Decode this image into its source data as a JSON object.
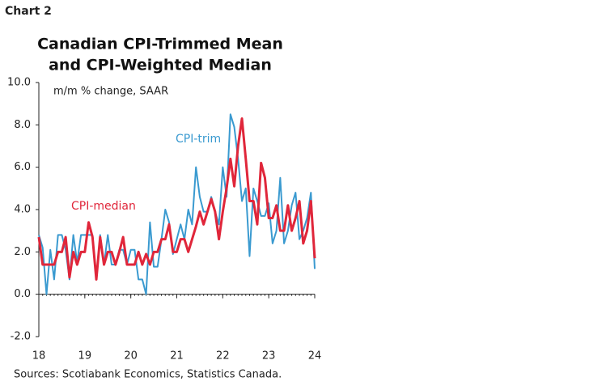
{
  "header": "Chart 2",
  "chart_data": {
    "type": "line",
    "title": [
      "Canadian CPI-Trimmed Mean",
      "and CPI-Weighted Median"
    ],
    "subtitle": "m/m % change, SAAR",
    "source": "Sources: Scotiabank Economics, Statistics Canada.",
    "x": [
      18,
      18.083,
      18.167,
      18.25,
      18.333,
      18.417,
      18.5,
      18.583,
      18.667,
      18.75,
      18.833,
      18.917,
      19,
      19.083,
      19.167,
      19.25,
      19.333,
      19.417,
      19.5,
      19.583,
      19.667,
      19.75,
      19.833,
      19.917,
      20,
      20.083,
      20.167,
      20.25,
      20.333,
      20.417,
      20.5,
      20.583,
      20.667,
      20.75,
      20.833,
      20.917,
      21,
      21.083,
      21.167,
      21.25,
      21.333,
      21.417,
      21.5,
      21.583,
      21.667,
      21.75,
      21.833,
      21.917,
      22,
      22.083,
      22.167,
      22.25,
      22.333,
      22.417,
      22.5,
      22.583,
      22.667,
      22.75,
      22.833,
      22.917,
      23,
      23.083,
      23.167,
      23.25,
      23.333,
      23.417,
      23.5,
      23.583,
      23.667,
      23.75,
      23.833,
      23.917,
      24
    ],
    "series": [
      {
        "name": "CPI-trim",
        "color": "#3a9ad0",
        "values": [
          2.8,
          2.2,
          0.0,
          2.1,
          0.7,
          2.8,
          2.8,
          2.1,
          0.7,
          2.8,
          1.5,
          2.8,
          2.8,
          2.8,
          2.8,
          0.7,
          2.8,
          1.4,
          2.8,
          1.4,
          1.4,
          2.1,
          2.1,
          1.4,
          2.1,
          2.1,
          0.7,
          0.7,
          0.0,
          3.4,
          1.3,
          1.3,
          2.6,
          4.0,
          3.4,
          1.9,
          2.6,
          3.3,
          2.6,
          4.0,
          3.3,
          6.0,
          4.6,
          3.9,
          3.9,
          4.6,
          3.9,
          3.3,
          6.0,
          4.6,
          8.5,
          7.9,
          6.4,
          4.4,
          5.0,
          1.8,
          5.0,
          4.4,
          3.7,
          3.7,
          4.3,
          2.4,
          3.0,
          5.5,
          2.4,
          3.0,
          4.2,
          4.8,
          2.6,
          3.0,
          3.6,
          4.8,
          1.2
        ]
      },
      {
        "name": "CPI-median",
        "color": "#e0263a",
        "values": [
          2.7,
          1.4,
          1.4,
          1.4,
          1.4,
          2.0,
          2.0,
          2.7,
          0.8,
          2.0,
          1.4,
          2.0,
          2.0,
          3.4,
          2.7,
          0.7,
          2.7,
          1.4,
          2.0,
          2.0,
          1.4,
          2.0,
          2.7,
          1.4,
          1.4,
          1.4,
          2.0,
          1.4,
          1.9,
          1.4,
          2.0,
          2.0,
          2.6,
          2.6,
          3.3,
          2.0,
          2.0,
          2.6,
          2.6,
          2.0,
          2.6,
          3.2,
          3.9,
          3.3,
          3.9,
          4.5,
          3.9,
          2.6,
          3.9,
          5.0,
          6.4,
          5.1,
          7.0,
          8.3,
          6.4,
          4.4,
          4.4,
          3.3,
          6.2,
          5.5,
          3.6,
          3.6,
          4.2,
          3.0,
          3.0,
          4.2,
          3.0,
          3.6,
          4.4,
          2.4,
          3.0,
          4.4,
          1.7
        ]
      }
    ],
    "xlim": [
      18,
      24
    ],
    "xticks": [
      18,
      19,
      20,
      21,
      22,
      23,
      24
    ],
    "ylim": [
      -2,
      10
    ],
    "yticks": [
      {
        "value": -2,
        "label": "-2.0"
      },
      {
        "value": 0,
        "label": "0.0"
      },
      {
        "value": 2,
        "label": "2.0"
      },
      {
        "value": 4,
        "label": "4.0"
      },
      {
        "value": 6,
        "label": "6.0"
      },
      {
        "value": 8,
        "label": "8.0"
      },
      {
        "value": 10,
        "label": "10.0"
      }
    ],
    "grid": false
  }
}
